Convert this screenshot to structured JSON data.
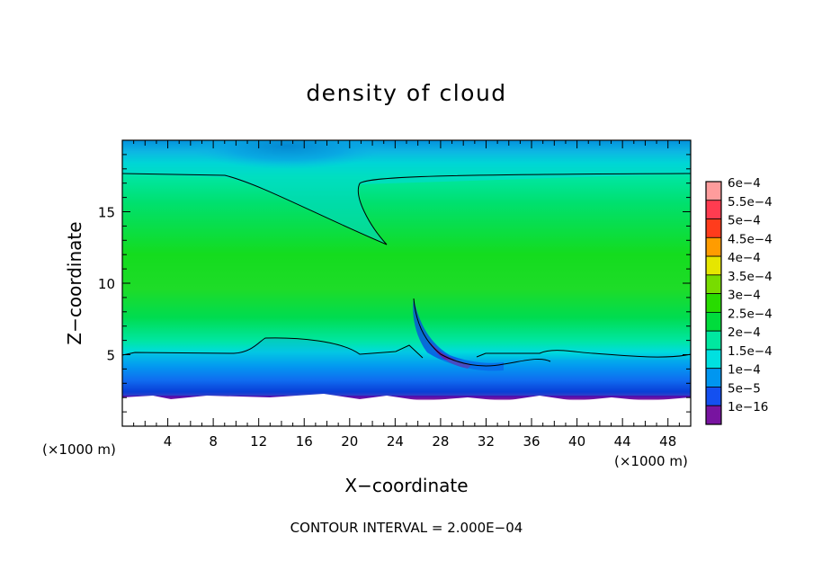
{
  "chart_data": {
    "type": "heatmap",
    "title": "density of cloud",
    "xlabel": "X−coordinate",
    "ylabel": "Z−coordinate",
    "x_unit_left": "(×1000 m)",
    "x_unit_right": "(×1000 m)",
    "footer": "CONTOUR INTERVAL = 2.000E−04",
    "xlim": [
      0,
      50
    ],
    "ylim": [
      0,
      20
    ],
    "x_ticks": [
      4,
      8,
      12,
      16,
      20,
      24,
      28,
      32,
      36,
      40,
      44,
      48
    ],
    "y_ticks": [
      5,
      10,
      15
    ],
    "colorbar": {
      "levels": [
        {
          "label": "6e−4",
          "value": 0.0006,
          "color": "#ff9c9c"
        },
        {
          "label": "5.5e−4",
          "value": 0.00055,
          "color": "#ff3c50"
        },
        {
          "label": "5e−4",
          "value": 0.0005,
          "color": "#ff3c1c"
        },
        {
          "label": "4.5e−4",
          "value": 0.00045,
          "color": "#ff9c00"
        },
        {
          "label": "4e−4",
          "value": 0.0004,
          "color": "#e6e600"
        },
        {
          "label": "3.5e−4",
          "value": 0.00035,
          "color": "#78dc00"
        },
        {
          "label": "3e−4",
          "value": 0.0003,
          "color": "#28dc00"
        },
        {
          "label": "2.5e−4",
          "value": 0.00025,
          "color": "#00dc3c"
        },
        {
          "label": "2e−4",
          "value": 0.0002,
          "color": "#00e8a0"
        },
        {
          "label": "1.5e−4",
          "value": 0.00015,
          "color": "#00e0e0"
        },
        {
          "label": "1e−4",
          "value": 0.0001,
          "color": "#0096f0"
        },
        {
          "label": "5e−5",
          "value": 5e-05,
          "color": "#1450f0"
        },
        {
          "label": "1e−16",
          "value": 1e-16,
          "color": "#0a0ac8"
        }
      ],
      "bottom_color": "#7814a0"
    }
  }
}
